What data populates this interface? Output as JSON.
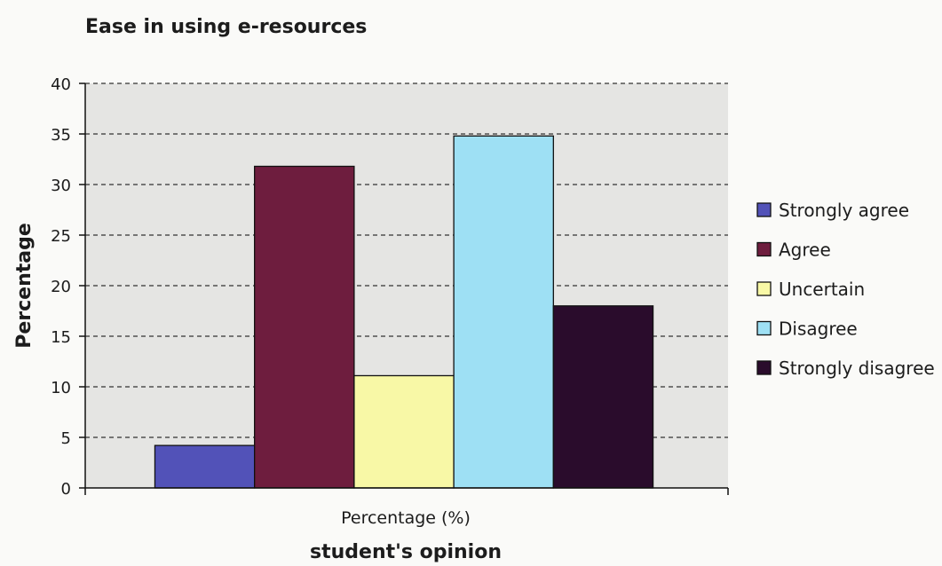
{
  "chart_data": {
    "type": "bar",
    "title": "Ease in using e-resources",
    "xlabel": "student's opinion",
    "ylabel": "Percentage",
    "categories": [
      "Percentage (%)"
    ],
    "series": [
      {
        "name": "Strongly agree",
        "values": [
          4.2
        ],
        "color": "#5252b8"
      },
      {
        "name": "Agree",
        "values": [
          31.8
        ],
        "color": "#6e1d3e"
      },
      {
        "name": "Uncertain",
        "values": [
          11.1
        ],
        "color": "#f8f8a6"
      },
      {
        "name": "Disagree",
        "values": [
          34.8
        ],
        "color": "#9ee0f4"
      },
      {
        "name": "Strongly disagree",
        "values": [
          18.0
        ],
        "color": "#2a0c2c"
      }
    ],
    "ylim": [
      0,
      40
    ],
    "yticks": [
      "0",
      "5",
      "10",
      "15",
      "20",
      "25",
      "30",
      "35",
      "40"
    ],
    "grid": true,
    "legend": "right"
  }
}
